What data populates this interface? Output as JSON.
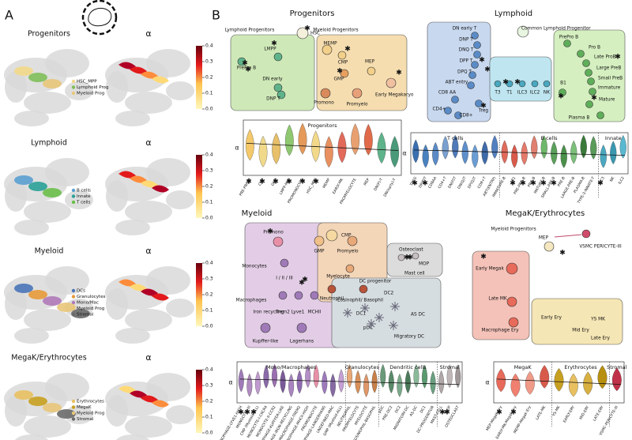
{
  "panel_a": {
    "label": "A",
    "alpha": "α",
    "colorbar_ticks": [
      "0.0",
      "0.1",
      "0.2",
      "0.3",
      "0.4"
    ],
    "rows": [
      {
        "title": "Progenitors",
        "legend": [
          "HSC_MPP",
          "Lymphoid Prog",
          "Myeloid Prog"
        ]
      },
      {
        "title": "Lymphoid",
        "legend": [
          "B cells",
          "Innate",
          "T cells"
        ]
      },
      {
        "title": "Myeloid",
        "legend": [
          "DCs",
          "Granulocytes",
          "Mono/Mac",
          "Myeloid Prog",
          "Stromal"
        ]
      },
      {
        "title": "MegaK/Erythrocytes",
        "legend": [
          "Erythrocytes",
          "MegaK",
          "Myeloid Prog",
          "Stromal"
        ]
      }
    ]
  },
  "panel_b": {
    "label": "B",
    "alpha": "α",
    "progenitors": {
      "title": "Progenitors",
      "labels": [
        "Lymphoid Progenitors",
        "Myeloid Progenitors",
        "HSC",
        "LMPP",
        "PrePro B",
        "DN early",
        "DNP T",
        "MEMP",
        "CMP",
        "MEP",
        "GMP",
        "Early Megakaryo",
        "Promono",
        "Promyelo"
      ],
      "violin": {
        "groups": [
          {
            "title": "Progenitors",
            "categories": [
              "PRE-PRO-B",
              "CMP",
              "GMP",
              "LMPP-MLP",
              "PROMONOCYTE",
              "HSC_MPP",
              "MEMP",
              "EARLY-MK",
              "PROMYELOCYTE",
              "MEP",
              "DN(P)-T",
              "DN(early)-T"
            ]
          }
        ]
      }
    },
    "lymphoid": {
      "title": "Lymphoid",
      "labels": [
        "Common Lymphoid Progenitor",
        "DN early T",
        "DNP T",
        "DNQ T",
        "DPP T",
        "DPQ T",
        "ABT entry",
        "CD8 AA",
        "CD4+",
        "CD8+",
        "Treg",
        "T3",
        "T1",
        "ILC3",
        "ILC2",
        "NK",
        "PrePro B",
        "Pro B",
        "Late ProB",
        "Large PreB",
        "Small PreB",
        "Immature",
        "B1",
        "Mature",
        "Plasma B"
      ],
      "violin": {
        "groups": [
          {
            "title": "T cells",
            "categories": [
              "TREG",
              "DP(P)T",
              "CD8AA",
              "CD4+T",
              "DN(P)T",
              "DN(Q)T",
              "DP(Q)T",
              "CD8+T",
              "ABT(ENTRY)"
            ]
          },
          {
            "title": "B cells",
            "categories": [
              "IMMATURE-B",
              "B1",
              "PRE-PRO-B",
              "PRO-B",
              "MATURE-B",
              "SMALL-PRE-B",
              "PRE-B",
              "LARGE-PRE-B",
              "PLASMA-B",
              "TYPE-3-INNATE-T"
            ]
          },
          {
            "title": "Innate",
            "categories": [
              "ILC3",
              "NK",
              "ILC2"
            ]
          }
        ]
      }
    },
    "myeloid": {
      "title": "Myeloid",
      "labels": [
        "CMP",
        "GMP",
        "Promono",
        "Promyelo",
        "Monocytes",
        "I / II / III",
        "Macrophages",
        "Iron recycling",
        "Trem2",
        "Lyve1",
        "MCHII",
        "Kupffer-like",
        "Lagerhans",
        "Myelocyte",
        "Neutrophil",
        "Eosinophil/ Basophil",
        "Osteoclast",
        "MOP",
        "Mast cell",
        "DC progenitor",
        "DC2",
        "DC1",
        "pDC",
        "AS DC",
        "Migratory DC"
      ],
      "violin": {
        "groups": [
          {
            "title": "Mono/Macrophages",
            "categories": [
              "MACROPHAGE-LYVE1-HIGH",
              "MONOCYTE-III",
              "CMP (Myeloid-ALL)",
              "MONOCYTE-I-CXCR4",
              "MONOCYTE-II-CCR2",
              "MACROPHAGE-KUPFFER-LIKE",
              "MACROPHAGE-IRON-RECYCLING",
              "MACROPHAGE-TREM2",
              "MACROPHAGE-MHCII-HIGH",
              "PROMONOCYTE",
              "MACROPHAGE-LANGERHANS",
              "UNDEFINED-MAC",
              "GMP (Myeloid-ALL)"
            ]
          },
          {
            "title": "Granulocytes",
            "categories": [
              "NEUTROPHIL",
              "PROMYELOCYTE",
              "MYELOCYTE",
              "EOSINOPHIL-BASOPHIL"
            ]
          },
          {
            "title": "Dendritic cells",
            "categories": [
              "pDC",
              "PRE-DC2",
              "DC2",
              "MIGRATORY-DC",
              "AS-DC",
              "DC1",
              "DC-PROGENITOR"
            ]
          },
          {
            "title": "Stromal",
            "categories": [
              "MAST-CELL",
              "MOP",
              "OSTEOCLAST"
            ]
          }
        ]
      }
    },
    "megak": {
      "title": "MegaK/Erythrocytes",
      "labels": [
        "Myeloid Progenitors",
        "MEP",
        "Early Megak",
        "Late MK",
        "Macrophage Ery",
        "Early Ery",
        "YS MK",
        "Mid Ery",
        "Late Ery",
        "VSMC PERICYTE-III"
      ],
      "violin": {
        "groups": [
          {
            "title": "MegaK",
            "categories": [
              "MEP-Megak-Ery",
              "EARLY-MK-Megak-Ery",
              "MEMP-Megak-Ery",
              "LATE-MK"
            ]
          },
          {
            "title": "Erythrocytes",
            "categories": [
              "YS-MK",
              "EARLY-ERY",
              "MID-ERY",
              "LATE-ERY"
            ]
          },
          {
            "title": "Stromal",
            "categories": [
              "VSMC-PERICYTE-III"
            ]
          }
        ]
      }
    }
  }
}
